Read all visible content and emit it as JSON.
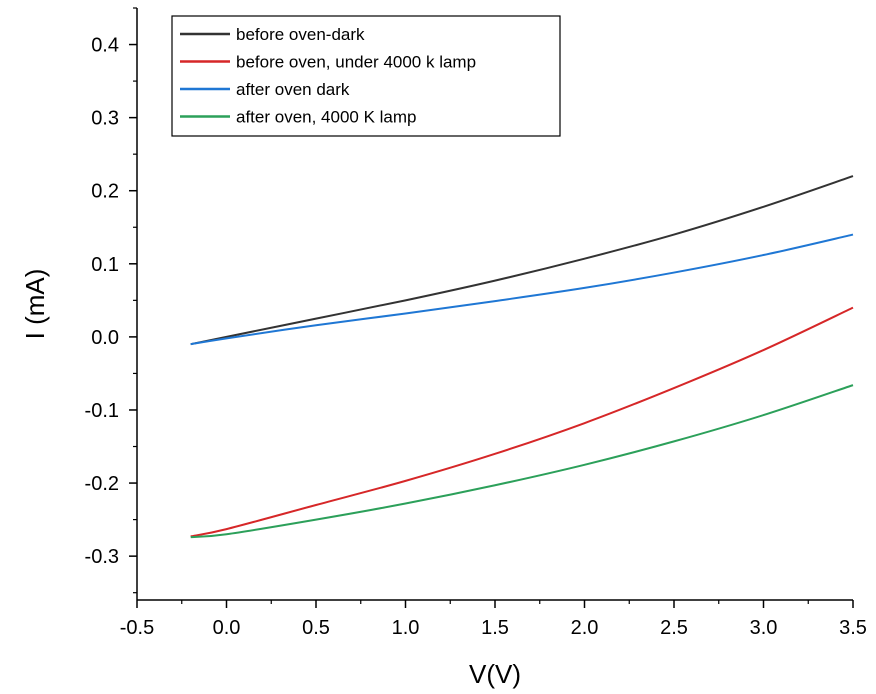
{
  "chart_data": {
    "type": "line",
    "title": "",
    "xlabel": "V(V)",
    "ylabel": "I (mA)",
    "xlim": [
      -0.5,
      3.5
    ],
    "ylim": [
      -0.36,
      0.45
    ],
    "x_major_ticks": [
      -0.5,
      0.0,
      0.5,
      1.0,
      1.5,
      2.0,
      2.5,
      3.0,
      3.5
    ],
    "x_tick_labels": [
      "-0.5",
      "0.0",
      "0.5",
      "1.0",
      "1.5",
      "2.0",
      "2.5",
      "3.0",
      "3.5"
    ],
    "y_major_ticks": [
      -0.3,
      -0.2,
      -0.1,
      0.0,
      0.1,
      0.2,
      0.3,
      0.4
    ],
    "y_tick_labels": [
      "-0.3",
      "-0.2",
      "-0.1",
      "0.0",
      "0.1",
      "0.2",
      "0.3",
      "0.4"
    ],
    "grid": false,
    "legend_position": "top-left",
    "series": [
      {
        "name": "before oven-dark",
        "color": "#333333",
        "x": [
          -0.2,
          0.0,
          0.5,
          1.0,
          1.5,
          2.0,
          2.5,
          3.0,
          3.5
        ],
        "y": [
          -0.01,
          0.0,
          0.025,
          0.05,
          0.077,
          0.107,
          0.14,
          0.178,
          0.22
        ]
      },
      {
        "name": "before oven, under 4000 k lamp",
        "color": "#d62728",
        "x": [
          -0.2,
          0.0,
          0.5,
          1.0,
          1.5,
          2.0,
          2.5,
          3.0,
          3.5
        ],
        "y": [
          -0.273,
          -0.263,
          -0.23,
          -0.197,
          -0.16,
          -0.118,
          -0.07,
          -0.018,
          0.04
        ]
      },
      {
        "name": "after oven dark",
        "color": "#1f77d4",
        "x": [
          -0.2,
          0.0,
          0.5,
          1.0,
          1.5,
          2.0,
          2.5,
          3.0,
          3.5
        ],
        "y": [
          -0.01,
          -0.002,
          0.016,
          0.032,
          0.049,
          0.067,
          0.088,
          0.112,
          0.14
        ]
      },
      {
        "name": "after oven, 4000 K lamp",
        "color": "#2ca05a",
        "x": [
          -0.2,
          0.0,
          0.5,
          1.0,
          1.5,
          2.0,
          2.5,
          3.0,
          3.5
        ],
        "y": [
          -0.274,
          -0.27,
          -0.25,
          -0.228,
          -0.203,
          -0.175,
          -0.143,
          -0.107,
          -0.066
        ]
      }
    ]
  }
}
